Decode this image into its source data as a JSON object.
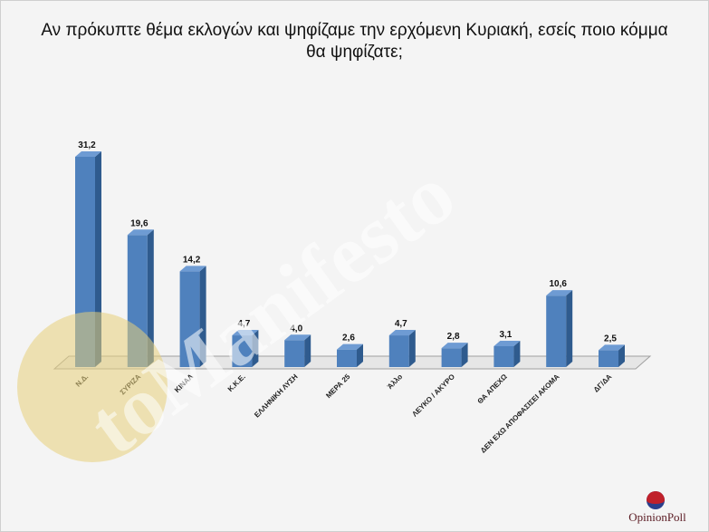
{
  "chart_data": {
    "type": "bar",
    "title": "Αν πρόκυπτε θέμα εκλογών και ψηφίζαμε την ερχόμενη Κυριακή, εσείς ποιο κόμμα θα ψηφίζατε;",
    "categories": [
      "Ν.Δ.",
      "ΣΥΡΙΖΑ",
      "ΚΙΝΑΛ",
      "Κ.Κ.Ε.",
      "ΕΛΛΗΝΙΚΗ ΛΥΣΗ",
      "ΜΕΡΑ 25",
      "Άλλο",
      "ΛΕΥΚΟ / ΑΚΥΡΟ",
      "ΘΑ ΑΠΕΧΩ",
      "ΔΕΝ ΕΧΩ ΑΠΟΦΑΣΙΣΕΙ ΑΚΟΜΑ",
      "ΔΓ/ΔΑ"
    ],
    "values": [
      31.2,
      19.6,
      14.2,
      4.7,
      4.0,
      2.6,
      4.7,
      2.8,
      3.1,
      10.6,
      2.5
    ],
    "value_labels": [
      "31,2",
      "19,6",
      "14,2",
      "4,7",
      "4,0",
      "2,6",
      "4,7",
      "2,8",
      "3,1",
      "10,6",
      "2,5"
    ],
    "ylim": [
      0,
      35
    ],
    "grid": false,
    "bar_color": "#4f81bd",
    "bar_side_color": "#2f5b8e",
    "bar_top_color": "#6e9bd3"
  },
  "watermark": {
    "text": "toManifesto",
    "circle_color": "#e8cf7a"
  },
  "logo": {
    "text": "OpinionPoll",
    "colors": [
      "#c0202a",
      "#2a3f8c"
    ]
  }
}
